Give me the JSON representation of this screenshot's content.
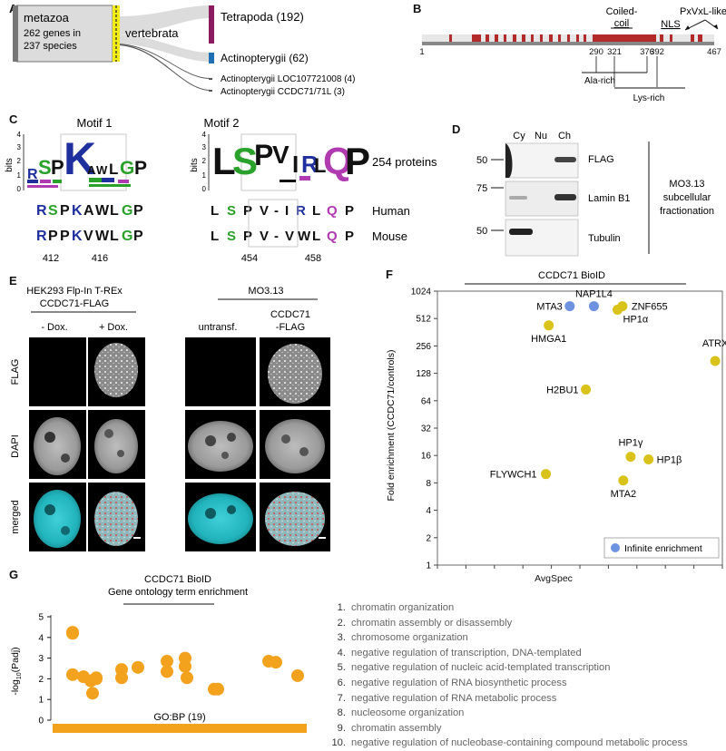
{
  "panel_labels": [
    "A",
    "B",
    "C",
    "D",
    "E",
    "F",
    "G"
  ],
  "panelA": {
    "root_name": "metazoa",
    "root_line2": "262 genes in",
    "root_line3": "237 species",
    "mid_name": "vertebrata",
    "leaves": [
      {
        "label": "Tetrapoda (192)",
        "color": "#8b1a5e"
      },
      {
        "label": "Actinopterygii (62)",
        "color": "#1f6fb5"
      },
      {
        "label": "Actinopterygii LOC107721008 (4)",
        "color": "#555555"
      },
      {
        "label": "Actinopterygii CCDC71/71L (3)",
        "color": "#555555"
      }
    ]
  },
  "panelB": {
    "label_coiled_1": "Coiled-",
    "label_coiled_2": "coil",
    "label_nls": "NLS",
    "label_pxvxl": "PxVxL-like",
    "ticks": [
      "1",
      "290",
      "321",
      "376",
      "392",
      "467"
    ],
    "ala_rich": "Ala-rich",
    "lys_rich": "Lys-rich",
    "bar_color": "#b22a2a"
  },
  "panelC": {
    "motif1_title": "Motif 1",
    "motif2_title": "Motif 2",
    "bits_label": "bits",
    "proteins_label": "254 proteins",
    "human_label": "Human",
    "mouse_label": "Mouse",
    "motif1_human": [
      "R",
      "S",
      "P",
      "K",
      "A",
      "W",
      "L",
      "G",
      "P"
    ],
    "motif1_mouse": [
      "R",
      "P",
      "P",
      "K",
      "V",
      "W",
      "L",
      "G",
      "P"
    ],
    "motif2_human": [
      "L",
      "S",
      "P",
      "V",
      "-",
      "I",
      "R",
      "L",
      "Q",
      "P"
    ],
    "motif2_mouse": [
      "L",
      "S",
      "P",
      "V",
      "-",
      "V",
      "W",
      "L",
      "Q",
      "P"
    ],
    "motif1_positions": [
      "412",
      "416"
    ],
    "motif2_positions": [
      "454",
      "458"
    ],
    "motif1_logo_letters": [
      "R",
      "S",
      "P",
      "K",
      "A",
      "W",
      "L",
      "G",
      "P"
    ],
    "motif2_logo_letters": [
      "L",
      "S",
      "P",
      "V",
      "I",
      "R",
      "L",
      "Q",
      "P"
    ],
    "yaxis_ticks": [
      "0",
      "1",
      "2",
      "3",
      "4"
    ]
  },
  "panelD": {
    "columns": [
      "Cy",
      "Nu",
      "Ch"
    ],
    "bands": [
      {
        "label": "FLAG",
        "marker": "50"
      },
      {
        "label": "Lamin B1",
        "marker": "75"
      },
      {
        "label": "Tubulin",
        "marker": "50"
      }
    ],
    "side_label": [
      "MO3.13",
      "subcellular",
      "fractionation"
    ]
  },
  "panelE": {
    "left_title_1": "HEK293 Flp-In T-REx",
    "left_title_2": "CCDC71-FLAG",
    "left_cols": [
      "- Dox.",
      "+ Dox."
    ],
    "right_title": "MO3.13",
    "right_cols": [
      "untransf.",
      "CCDC71",
      "-FLAG"
    ],
    "rows": [
      "FLAG",
      "DAPI",
      "merged"
    ]
  },
  "chart_data": {
    "type": "scatter",
    "title": "CCDC71 BioID",
    "xlabel": "AvgSpec",
    "ylabel": "Fold enrichment (CCDC71/controls)",
    "xscale": "log2",
    "yscale": "log2",
    "xlim": [
      1,
      1024
    ],
    "ylim": [
      1,
      1024
    ],
    "xticks": [
      "1",
      "2",
      "4",
      "8",
      "16",
      "32",
      "64",
      "128",
      "256",
      "512",
      "1024"
    ],
    "yticks": [
      "1",
      "2",
      "4",
      "8",
      "16",
      "32",
      "64",
      "128",
      "256",
      "512",
      "1024"
    ],
    "legend": "Infinite enrichment",
    "legend_position": "bottom-right",
    "colors": {
      "finite": "#d9c21a",
      "infinite": "#6d93e0"
    },
    "points": [
      {
        "name": "MTA3",
        "x": 25,
        "y": 700,
        "infinite": true
      },
      {
        "name": "NAP1L4",
        "x": 45,
        "y": 700,
        "infinite": true
      },
      {
        "name": "ZNF655",
        "x": 90,
        "y": 700,
        "infinite": false
      },
      {
        "name": "HP1α",
        "x": 80,
        "y": 640,
        "infinite": false
      },
      {
        "name": "HMGA1",
        "x": 15,
        "y": 430,
        "infinite": false
      },
      {
        "name": "ATRX",
        "x": 860,
        "y": 175,
        "infinite": false
      },
      {
        "name": "H2BU1",
        "x": 37,
        "y": 85,
        "infinite": false
      },
      {
        "name": "HP1γ",
        "x": 110,
        "y": 15.5,
        "infinite": false
      },
      {
        "name": "HP1β",
        "x": 170,
        "y": 14.5,
        "infinite": false
      },
      {
        "name": "FLYWCH1",
        "x": 14,
        "y": 10,
        "infinite": false
      },
      {
        "name": "MTA2",
        "x": 92,
        "y": 8.5,
        "infinite": false
      }
    ]
  },
  "panelG": {
    "title_1": "CCDC71 BioID",
    "title_2": "Gene ontology term enrichment",
    "ylabel": "-log10(Padj)",
    "yticks": [
      "0",
      "1",
      "2",
      "3",
      "4",
      "5"
    ],
    "bar_label": "GO:BP (19)",
    "color": "#f3a21e",
    "values": [
      4.25,
      4.2,
      2.2,
      2.1,
      2.0,
      1.9,
      2.05,
      1.3,
      2.45,
      2.05,
      2.55,
      2.85,
      2.35,
      2.05,
      3.0,
      2.6,
      1.5,
      2.8,
      2.15
    ],
    "terms": [
      "chromatin organization",
      "chromatin assembly or disassembly",
      "chromosome organization",
      "negative regulation of transcription, DNA-templated",
      "negative regulation of nucleic acid-templated transcription",
      "negative regulation of RNA biosynthetic process",
      "negative regulation of RNA metabolic process",
      "nucleosome organization",
      "chromatin assembly",
      "negative regulation of nucleobase-containing compound metabolic process"
    ]
  }
}
